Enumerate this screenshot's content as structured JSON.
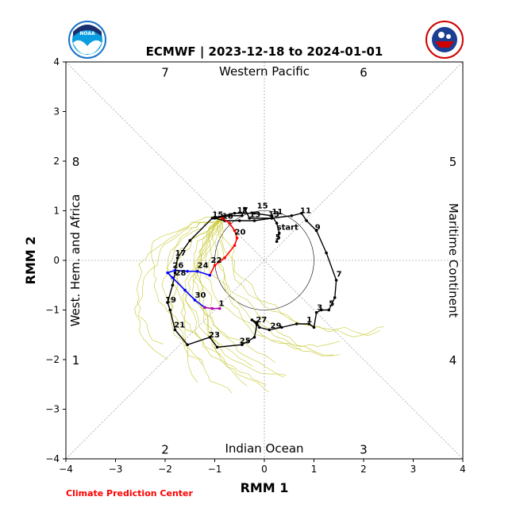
{
  "title": "ECMWF | 2023-12-18 to 2024-01-01",
  "credit": "Climate Prediction Center",
  "logos": {
    "noaa": {
      "name": "noaa-logo",
      "text": "NOAA",
      "color": "#1a73c7"
    },
    "nws": {
      "name": "nws-logo",
      "text": "NATIONAL WEATHER SERVICE",
      "color": "#1c3f94"
    }
  },
  "colors": {
    "observed": "#000000",
    "ensemble": "#c8c832",
    "forecast_week1": "#ff0000",
    "forecast_week2": "#0000ff",
    "forecast_week3": "#b000b0",
    "credit": "#ff0000"
  },
  "chart_data": {
    "type": "line",
    "xlabel": "RMM 1",
    "ylabel": "RMM 2",
    "xlim": [
      -4,
      4
    ],
    "ylim": [
      -4,
      4
    ],
    "xticks": [
      "−4",
      "−3",
      "−2",
      "−1",
      "0",
      "1",
      "2",
      "3",
      "4"
    ],
    "yticks": [
      "−4",
      "−3",
      "−2",
      "−1",
      "0",
      "1",
      "2",
      "3",
      "4"
    ],
    "grid": "dotted phase boundaries",
    "unit_circle_radius": 1,
    "region_labels": {
      "top": "Western Pacific",
      "bottom": "Indian Ocean",
      "left": "West. Hem. and Africa",
      "right": "Maritime Continent"
    },
    "phase_labels": [
      {
        "phase": "7",
        "x": -2.0,
        "y": 3.8
      },
      {
        "phase": "6",
        "x": 2.0,
        "y": 3.8
      },
      {
        "phase": "8",
        "x": -3.8,
        "y": 2.0
      },
      {
        "phase": "5",
        "x": 3.8,
        "y": 2.0
      },
      {
        "phase": "1",
        "x": -3.8,
        "y": -2.0
      },
      {
        "phase": "4",
        "x": 3.8,
        "y": -2.0
      },
      {
        "phase": "2",
        "x": -2.0,
        "y": -3.8
      },
      {
        "phase": "3",
        "x": 2.0,
        "y": -3.8
      }
    ],
    "observed": {
      "name": "observed",
      "points": [
        [
          0.15,
          0.85
        ],
        [
          -0.3,
          0.85
        ],
        [
          -0.4,
          1.05
        ],
        [
          -0.45,
          0.9
        ],
        [
          -0.7,
          0.9
        ],
        [
          -1.0,
          0.85
        ],
        [
          -0.8,
          0.8
        ],
        [
          -0.5,
          0.8
        ],
        [
          -0.2,
          0.8
        ],
        [
          0.15,
          0.85
        ],
        [
          0.55,
          0.9
        ],
        [
          0.75,
          0.95
        ],
        [
          0.85,
          0.8
        ],
        [
          1.05,
          0.6
        ],
        [
          1.25,
          0.15
        ],
        [
          1.45,
          -0.4
        ],
        [
          1.42,
          -0.75
        ],
        [
          1.3,
          -1.0
        ],
        [
          1.15,
          -1.0
        ],
        [
          1.05,
          -1.05
        ],
        [
          1.0,
          -1.35
        ],
        [
          0.9,
          -1.28
        ],
        [
          0.65,
          -1.28
        ],
        [
          0.35,
          -1.35
        ],
        [
          0.1,
          -1.4
        ],
        [
          -0.1,
          -1.35
        ],
        [
          -0.15,
          -1.25
        ],
        [
          -0.25,
          -1.2
        ],
        [
          -0.15,
          -1.3
        ],
        [
          -0.2,
          -1.55
        ],
        [
          -0.45,
          -1.7
        ],
        [
          -0.95,
          -1.75
        ],
        [
          -1.1,
          -1.55
        ],
        [
          -1.55,
          -1.7
        ],
        [
          -1.8,
          -1.4
        ],
        [
          -1.9,
          -1.0
        ],
        [
          -1.95,
          -0.85
        ],
        [
          -1.85,
          -0.5
        ],
        [
          -1.8,
          -0.25
        ],
        [
          -1.75,
          0.05
        ],
        [
          -1.5,
          0.4
        ],
        [
          -1.05,
          0.85
        ],
        [
          -0.6,
          0.95
        ],
        [
          -0.2,
          0.95
        ],
        [
          0.15,
          0.9
        ],
        [
          0.25,
          0.75
        ],
        [
          0.3,
          0.55
        ],
        [
          0.25,
          0.38
        ]
      ],
      "labels": [
        {
          "text": "start",
          "x": 0.25,
          "y": 0.62
        },
        {
          "text": "5",
          "x": 0.22,
          "y": 0.42
        },
        {
          "text": "9",
          "x": 1.02,
          "y": 0.62
        },
        {
          "text": "11",
          "x": 0.72,
          "y": 0.95
        },
        {
          "text": "13",
          "x": 0.08,
          "y": 0.88
        },
        {
          "text": "15",
          "x": -0.15,
          "y": 1.05
        },
        {
          "text": "17",
          "x": -0.55,
          "y": 0.96
        },
        {
          "text": "7",
          "x": 1.45,
          "y": -0.33
        },
        {
          "text": "5",
          "x": 1.3,
          "y": -0.92
        },
        {
          "text": "3",
          "x": 1.06,
          "y": -1.0
        },
        {
          "text": "1",
          "x": 0.85,
          "y": -1.25
        },
        {
          "text": "29",
          "x": 0.12,
          "y": -1.37
        },
        {
          "text": "27",
          "x": -0.17,
          "y": -1.25
        },
        {
          "text": "25",
          "x": -0.5,
          "y": -1.67
        },
        {
          "text": "23",
          "x": -1.12,
          "y": -1.55
        },
        {
          "text": "21",
          "x": -1.82,
          "y": -1.35
        },
        {
          "text": "19",
          "x": -2.0,
          "y": -0.85
        },
        {
          "text": "17",
          "x": -1.8,
          "y": 0.1
        },
        {
          "text": "15",
          "x": -1.05,
          "y": 0.87
        },
        {
          "text": "13",
          "x": -0.3,
          "y": 0.87
        },
        {
          "text": "11",
          "x": 0.15,
          "y": 0.93
        }
      ]
    },
    "forecast": {
      "week1": [
        [
          -0.85,
          0.85
        ],
        [
          -0.7,
          0.75
        ],
        [
          -0.6,
          0.6
        ],
        [
          -0.55,
          0.45
        ],
        [
          -0.6,
          0.3
        ],
        [
          -0.8,
          0.05
        ],
        [
          -1.0,
          -0.1
        ],
        [
          -1.1,
          -0.3
        ]
      ],
      "week2": [
        [
          -1.1,
          -0.3
        ],
        [
          -1.35,
          -0.22
        ],
        [
          -1.55,
          -0.22
        ],
        [
          -1.8,
          -0.2
        ],
        [
          -1.95,
          -0.25
        ],
        [
          -1.85,
          -0.35
        ],
        [
          -1.6,
          -0.6
        ],
        [
          -1.4,
          -0.8
        ],
        [
          -1.2,
          -0.95
        ]
      ],
      "week3": [
        [
          -1.2,
          -0.95
        ],
        [
          -1.05,
          -0.97
        ],
        [
          -0.9,
          -0.97
        ]
      ],
      "labels": [
        {
          "text": "18",
          "x": -0.85,
          "y": 0.84
        },
        {
          "text": "20",
          "x": -0.6,
          "y": 0.52
        },
        {
          "text": "22",
          "x": -1.08,
          "y": -0.05
        },
        {
          "text": "24",
          "x": -1.35,
          "y": -0.15
        },
        {
          "text": "26",
          "x": -1.85,
          "y": -0.15
        },
        {
          "text": "28",
          "x": -1.8,
          "y": -0.3
        },
        {
          "text": "30",
          "x": -1.4,
          "y": -0.75
        },
        {
          "text": "1",
          "x": -0.92,
          "y": -0.92
        }
      ]
    },
    "ensemble_members": 20
  }
}
